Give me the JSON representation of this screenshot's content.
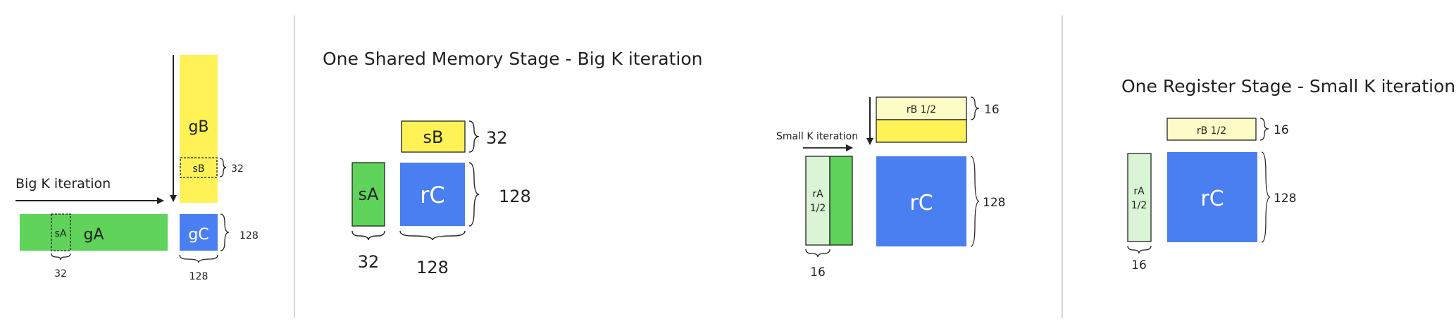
{
  "colors": {
    "green": "#5fd35a",
    "light_green": "#d9f5d6",
    "yellow": "#fef256",
    "light_yellow": "#fefcc6",
    "blue": "#4a7ff2",
    "divider": "#d4d4d4",
    "stroke": "#222222"
  },
  "panel1": {
    "arrow_label": "Big K iteration",
    "gB": "gB",
    "sB": "sB",
    "gA": "gA",
    "sA": "sA",
    "gC": "gC",
    "dim_sB": "32",
    "dim_sA": "32",
    "dim_gC_h": "128",
    "dim_gC_w": "128"
  },
  "panel2": {
    "title": "One Shared Memory Stage - Big K iteration",
    "sB": "sB",
    "sA": "sA",
    "rC": "rC",
    "dim_sB": "32",
    "dim_rC_h": "128",
    "dim_sA": "32",
    "dim_rC_w": "128"
  },
  "panel3": {
    "arrow_label": "Small K iteration",
    "rB": "rB 1/2",
    "rA_line1": "rA",
    "rA_line2": "1/2",
    "rC": "rC",
    "dim_rB": "16",
    "dim_rC_h": "128",
    "dim_rA": "16"
  },
  "panel4": {
    "title": "One Register Stage - Small K iteration",
    "rB": "rB 1/2",
    "rA_line1": "rA",
    "rA_line2": "1/2",
    "rC": "rC",
    "dim_rB": "16",
    "dim_rC_h": "128",
    "dim_rA": "16"
  }
}
